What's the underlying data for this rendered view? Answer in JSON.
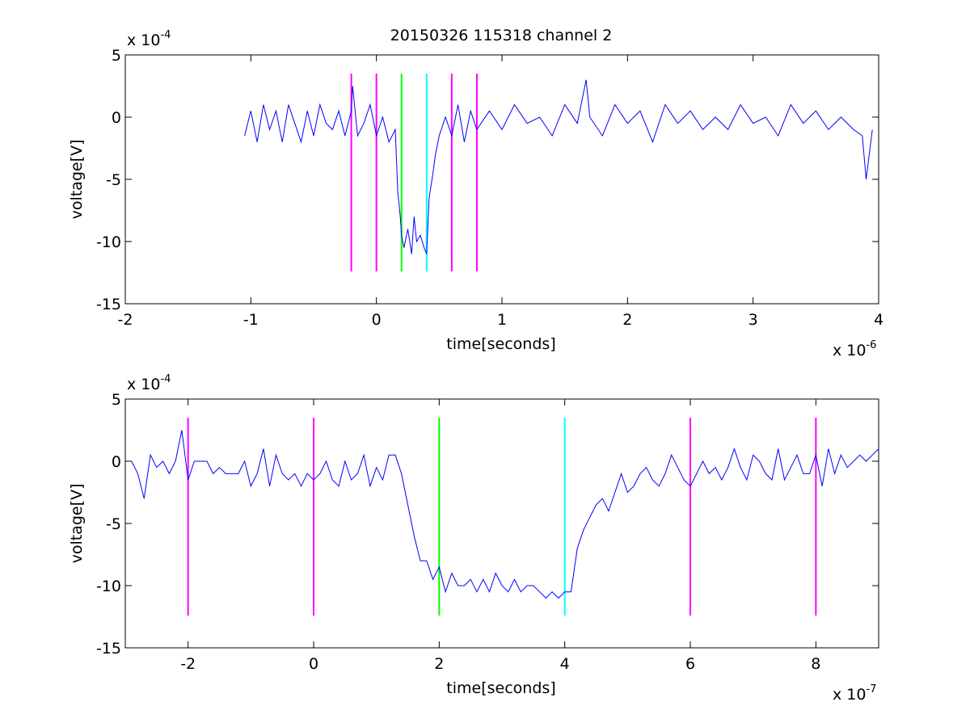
{
  "figure_title": "20150326 115318 channel 2",
  "chart_data": [
    {
      "type": "line",
      "xlabel": "time[seconds]",
      "ylabel": "voltage[V]",
      "x_exponent_label": "x 10",
      "x_exponent": "-6",
      "y_exponent_label": "x 10",
      "y_exponent": "-4",
      "x_scale": 1e-06,
      "y_scale": 0.0001,
      "xlim": [
        -2,
        4
      ],
      "ylim": [
        -15,
        5
      ],
      "xticks": [
        -2,
        -1,
        0,
        1,
        2,
        3,
        4
      ],
      "yticks": [
        5,
        0,
        -5,
        -10,
        -15
      ],
      "xtick_labels": [
        "-2",
        "-1",
        "0",
        "1",
        "2",
        "3",
        "4"
      ],
      "ytick_labels": [
        "5",
        "0",
        "-5",
        "-10",
        "-15"
      ],
      "grid": false,
      "series": [
        {
          "color": "#0000ff",
          "x": [
            -1.05,
            -1.0,
            -0.95,
            -0.9,
            -0.85,
            -0.8,
            -0.75,
            -0.7,
            -0.65,
            -0.6,
            -0.55,
            -0.5,
            -0.45,
            -0.4,
            -0.35,
            -0.3,
            -0.25,
            -0.2,
            -0.19,
            -0.15,
            -0.1,
            -0.05,
            0.0,
            0.05,
            0.1,
            0.15,
            0.17,
            0.19,
            0.2,
            0.22,
            0.25,
            0.28,
            0.3,
            0.32,
            0.35,
            0.38,
            0.4,
            0.42,
            0.45,
            0.47,
            0.5,
            0.55,
            0.6,
            0.65,
            0.7,
            0.75,
            0.8,
            0.9,
            1.0,
            1.1,
            1.2,
            1.3,
            1.4,
            1.5,
            1.6,
            1.67,
            1.7,
            1.8,
            1.9,
            2.0,
            2.1,
            2.2,
            2.3,
            2.4,
            2.5,
            2.6,
            2.7,
            2.8,
            2.9,
            3.0,
            3.1,
            3.2,
            3.3,
            3.4,
            3.5,
            3.6,
            3.7,
            3.8,
            3.87,
            3.9,
            3.95
          ],
          "values": [
            -1.5,
            0.5,
            -2.0,
            1.0,
            -1.0,
            0.5,
            -2.0,
            1.0,
            -0.5,
            -2.0,
            0.5,
            -1.5,
            1.0,
            -0.5,
            -1.0,
            0.5,
            -1.5,
            0.5,
            2.5,
            -1.5,
            -0.5,
            1.0,
            -1.5,
            0.0,
            -2.0,
            -1.0,
            -6.0,
            -8.0,
            -9.5,
            -10.5,
            -9.0,
            -11.0,
            -8.0,
            -10.0,
            -9.5,
            -10.5,
            -11.0,
            -6.5,
            -4.5,
            -3.0,
            -1.5,
            0.0,
            -1.5,
            1.0,
            -2.0,
            0.5,
            -1.0,
            0.5,
            -1.0,
            1.0,
            -0.5,
            0.0,
            -1.5,
            1.0,
            -0.5,
            3.0,
            0.0,
            -1.5,
            1.0,
            -0.5,
            0.5,
            -2.0,
            1.0,
            -0.5,
            0.5,
            -1.0,
            0.0,
            -1.0,
            1.0,
            -0.5,
            0.0,
            -1.5,
            1.0,
            -0.5,
            0.5,
            -1.0,
            0.0,
            -1.0,
            -1.5,
            -5.0,
            -1.0
          ]
        }
      ],
      "vertical_lines": [
        {
          "x": -0.2,
          "color": "#ff00ff"
        },
        {
          "x": 0.0,
          "color": "#ff00ff"
        },
        {
          "x": 0.2,
          "color": "#00ff00"
        },
        {
          "x": 0.4,
          "color": "#00ffff"
        },
        {
          "x": 0.6,
          "color": "#ff00ff"
        },
        {
          "x": 0.8,
          "color": "#ff00ff"
        }
      ],
      "vertical_line_span": [
        -12.4,
        3.5
      ]
    },
    {
      "type": "line",
      "xlabel": "time[seconds]",
      "ylabel": "voltage[V]",
      "x_exponent_label": "x 10",
      "x_exponent": "-7",
      "y_exponent_label": "x 10",
      "y_exponent": "-4",
      "x_scale": 1e-07,
      "y_scale": 0.0001,
      "xlim": [
        -3,
        9
      ],
      "ylim": [
        -15,
        5
      ],
      "xticks": [
        -2,
        0,
        2,
        4,
        6,
        8
      ],
      "yticks": [
        5,
        0,
        -5,
        -10,
        -15
      ],
      "xtick_labels": [
        "-2",
        "0",
        "2",
        "4",
        "6",
        "8"
      ],
      "ytick_labels": [
        "5",
        "0",
        "-5",
        "-10",
        "-15"
      ],
      "grid": false,
      "series": [
        {
          "color": "#0000ff",
          "x": [
            -3.0,
            -2.9,
            -2.8,
            -2.7,
            -2.6,
            -2.5,
            -2.4,
            -2.3,
            -2.2,
            -2.1,
            -2.05,
            -2.0,
            -1.9,
            -1.8,
            -1.7,
            -1.6,
            -1.5,
            -1.4,
            -1.3,
            -1.2,
            -1.1,
            -1.0,
            -0.9,
            -0.8,
            -0.7,
            -0.6,
            -0.5,
            -0.4,
            -0.3,
            -0.2,
            -0.1,
            0.0,
            0.1,
            0.2,
            0.3,
            0.4,
            0.5,
            0.6,
            0.7,
            0.8,
            0.9,
            1.0,
            1.1,
            1.2,
            1.3,
            1.4,
            1.5,
            1.6,
            1.7,
            1.8,
            1.9,
            2.0,
            2.1,
            2.2,
            2.3,
            2.4,
            2.5,
            2.6,
            2.7,
            2.8,
            2.9,
            3.0,
            3.1,
            3.2,
            3.3,
            3.4,
            3.5,
            3.6,
            3.7,
            3.8,
            3.9,
            4.0,
            4.1,
            4.2,
            4.3,
            4.4,
            4.5,
            4.6,
            4.7,
            4.8,
            4.9,
            5.0,
            5.1,
            5.2,
            5.3,
            5.4,
            5.5,
            5.6,
            5.7,
            5.8,
            5.9,
            6.0,
            6.1,
            6.2,
            6.3,
            6.4,
            6.5,
            6.6,
            6.7,
            6.8,
            6.9,
            7.0,
            7.1,
            7.2,
            7.3,
            7.4,
            7.5,
            7.6,
            7.7,
            7.8,
            7.9,
            8.0,
            8.1,
            8.2,
            8.3,
            8.4,
            8.5,
            8.6,
            8.7,
            8.8,
            8.9,
            9.0
          ],
          "values": [
            0.0,
            0.0,
            -1.0,
            -3.0,
            0.5,
            -0.5,
            0.0,
            -1.0,
            0.0,
            2.5,
            0.5,
            -1.5,
            0.0,
            0.0,
            0.0,
            -1.0,
            -0.5,
            -1.0,
            -1.0,
            -1.0,
            0.0,
            -2.0,
            -1.0,
            1.0,
            -2.0,
            0.5,
            -1.0,
            -1.5,
            -1.0,
            -2.0,
            -1.0,
            -1.5,
            -1.0,
            0.0,
            -1.5,
            -2.0,
            0.0,
            -1.5,
            -1.0,
            0.5,
            -2.0,
            -0.5,
            -1.5,
            0.5,
            0.5,
            -1.0,
            -3.5,
            -6.0,
            -8.0,
            -8.0,
            -9.5,
            -8.5,
            -10.5,
            -9.0,
            -10.0,
            -10.0,
            -9.5,
            -10.5,
            -9.5,
            -10.5,
            -9.0,
            -10.0,
            -10.5,
            -9.5,
            -10.5,
            -10.0,
            -10.0,
            -10.5,
            -11.0,
            -10.5,
            -11.0,
            -10.5,
            -10.5,
            -7.0,
            -5.5,
            -4.5,
            -3.5,
            -3.0,
            -4.0,
            -2.5,
            -1.0,
            -2.5,
            -2.0,
            -1.0,
            -0.5,
            -1.5,
            -2.0,
            -1.0,
            0.5,
            -0.5,
            -1.5,
            -2.0,
            -1.0,
            0.0,
            -1.0,
            -0.5,
            -1.5,
            -0.5,
            1.0,
            -0.5,
            -1.5,
            0.5,
            0.0,
            -1.0,
            -1.5,
            1.0,
            -1.5,
            -0.5,
            0.5,
            -1.0,
            -1.0,
            0.5,
            -2.0,
            1.0,
            -1.0,
            0.5,
            -0.5,
            0.0,
            0.5,
            0.0,
            0.5,
            1.0
          ]
        }
      ],
      "vertical_lines": [
        {
          "x": -2,
          "color": "#ff00ff"
        },
        {
          "x": 0,
          "color": "#ff00ff"
        },
        {
          "x": 2,
          "color": "#00ff00"
        },
        {
          "x": 4,
          "color": "#00ffff"
        },
        {
          "x": 6,
          "color": "#ff00ff"
        },
        {
          "x": 8,
          "color": "#ff00ff"
        }
      ],
      "vertical_line_span": [
        -12.4,
        3.5
      ]
    }
  ]
}
